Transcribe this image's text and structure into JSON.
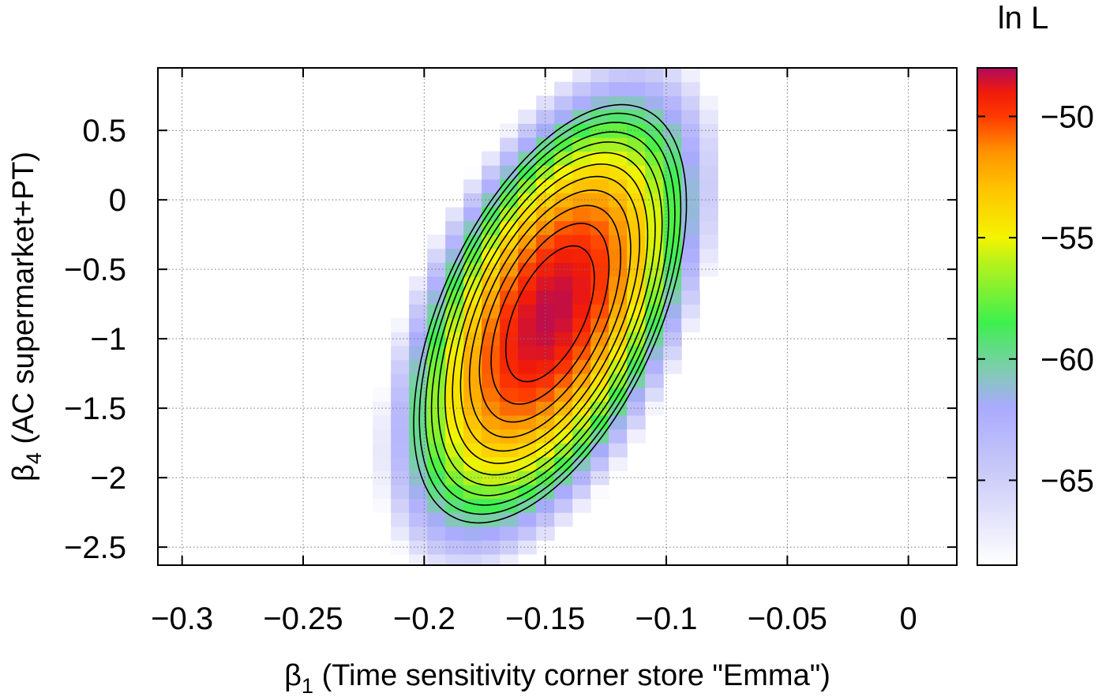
{
  "chart_data": {
    "type": "heatmap",
    "title": "",
    "colorbar_label": "ln L",
    "xlabel": {
      "symbol": "β",
      "subscript": "1",
      "text": " (Time sensitivity corner store \"Emma\")"
    },
    "ylabel": {
      "symbol": "β",
      "subscript": "4",
      "text": " (AC supermarket+PT)"
    },
    "xlim": [
      -0.31,
      0.02
    ],
    "ylim": [
      -2.63,
      0.95
    ],
    "x_ticks": [
      -0.3,
      -0.25,
      -0.2,
      -0.15,
      -0.1,
      -0.05,
      0
    ],
    "x_tick_labels": [
      "−0.3",
      "−0.25",
      "−0.2",
      "−0.15",
      "−0.1",
      "−0.05",
      "0"
    ],
    "y_ticks": [
      0.5,
      0,
      -0.5,
      -1,
      -1.5,
      -2,
      -2.5
    ],
    "y_tick_labels": [
      "0.5",
      "0",
      "−0.5",
      "−1",
      "−1.5",
      "−2",
      "−2.5"
    ],
    "colorbar_range": [
      -68.5,
      -48
    ],
    "colorbar_ticks": [
      -50,
      -55,
      -60,
      -65
    ],
    "colorbar_tick_labels": [
      "−50",
      "−55",
      "−60",
      "−65"
    ],
    "grid": true,
    "maximum": {
      "x": -0.148,
      "y": -0.82,
      "value": -48.2
    },
    "grid_x": {
      "start": -0.27,
      "end": -0.015,
      "step": 0.0075
    },
    "grid_y": {
      "start": -2.6,
      "end": 0.9,
      "step": 0.1
    },
    "contour_levels": [
      -49.5,
      -50.5,
      -51.5,
      -52.5,
      -53.5,
      -54.5,
      -55.5,
      -56.5,
      -57.5,
      -58.5,
      -59.5,
      -60.5
    ],
    "colormap": [
      {
        "value": -68.5,
        "color": "#ffffff"
      },
      {
        "value": -64.5,
        "color": "#c8c8f8"
      },
      {
        "value": -62.0,
        "color": "#aaaaff"
      },
      {
        "value": -60.3,
        "color": "#7acfa8"
      },
      {
        "value": -58.5,
        "color": "#3ef04e"
      },
      {
        "value": -56.0,
        "color": "#b8f21a"
      },
      {
        "value": -55.0,
        "color": "#f4f400"
      },
      {
        "value": -53.0,
        "color": "#ffc400"
      },
      {
        "value": -51.5,
        "color": "#ff9400"
      },
      {
        "value": -50.0,
        "color": "#ff3a00"
      },
      {
        "value": -49.0,
        "color": "#f01a0a"
      },
      {
        "value": -48.0,
        "color": "#b00a5e"
      }
    ]
  }
}
